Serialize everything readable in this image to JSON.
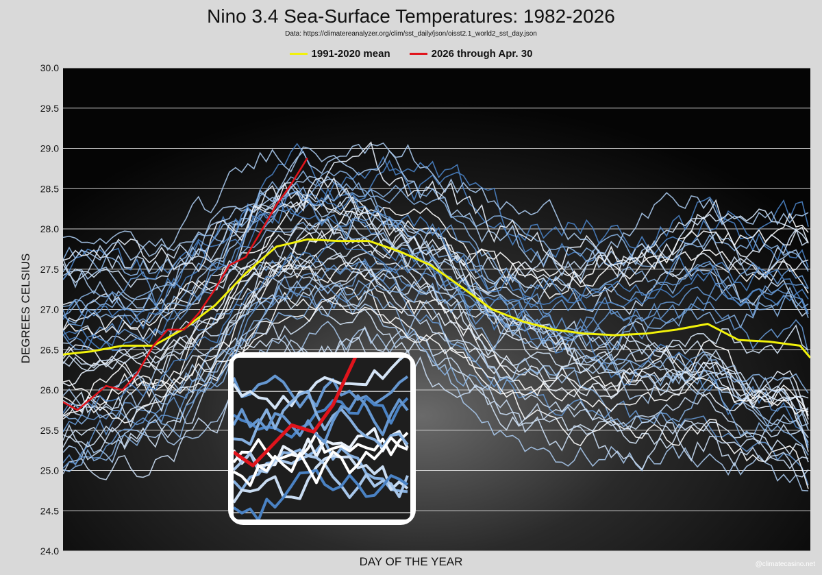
{
  "title": "Nino 3.4 Sea-Surface Temperatures: 1982-2026",
  "subtitle": "Data: https://climatereanalyzer.org/clim/sst_daily/json/oisst2.1_world2_sst_day.json",
  "credit": "@climatecasino.net",
  "colors": {
    "mean": "#f2f20a",
    "current": "#e0141c",
    "historical_light": "#dde9f7",
    "historical_dark": "#3d7fc0"
  },
  "chart_data": {
    "type": "line",
    "title": "Nino 3.4 Sea-Surface Temperatures: 1982-2026",
    "xlabel": "DAY OF THE YEAR",
    "ylabel": "DEGREES CELSIUS",
    "xlim": [
      1,
      365
    ],
    "ylim": [
      24.0,
      30.0
    ],
    "yticks": [
      "24.0",
      "24.5",
      "25.0",
      "25.5",
      "26.0",
      "26.5",
      "27.0",
      "27.5",
      "28.0",
      "28.5",
      "29.0",
      "29.5",
      "30.0"
    ],
    "grid": true,
    "legend": "top",
    "inset": "zoomed view of 2026 series",
    "series": [
      {
        "name": "1991-2020 mean",
        "x": [
          1,
          15,
          30,
          45,
          60,
          75,
          90,
          105,
          120,
          135,
          150,
          165,
          180,
          195,
          210,
          225,
          240,
          255,
          270,
          285,
          300,
          315,
          330,
          345,
          360,
          365
        ],
        "values": [
          26.44,
          26.48,
          26.55,
          26.55,
          26.76,
          27.05,
          27.45,
          27.78,
          27.87,
          27.85,
          27.85,
          27.72,
          27.55,
          27.28,
          27.0,
          26.85,
          26.75,
          26.7,
          26.68,
          26.7,
          26.75,
          26.82,
          26.62,
          26.6,
          26.55,
          26.4
        ]
      },
      {
        "name": "2026 through Apr. 30",
        "x": [
          1,
          8,
          15,
          22,
          30,
          37,
          45,
          52,
          60,
          67,
          75,
          82,
          90,
          97,
          105,
          112,
          120
        ],
        "values": [
          25.85,
          25.75,
          25.9,
          26.05,
          26.0,
          26.2,
          26.55,
          26.75,
          26.75,
          26.95,
          27.25,
          27.55,
          27.65,
          27.95,
          28.3,
          28.55,
          28.88
        ]
      }
    ]
  }
}
